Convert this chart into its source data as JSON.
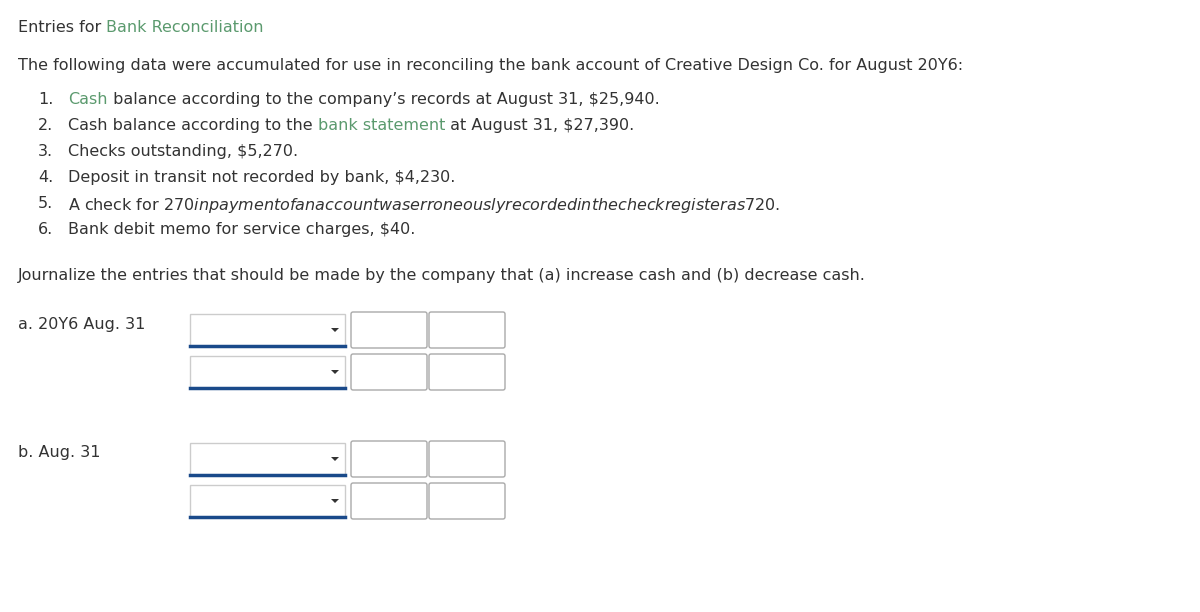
{
  "title_prefix": "Entries for ",
  "title_highlight": "Bank Reconciliation",
  "title_highlight_color": "#5b9a6e",
  "intro": "The following data were accumulated for use in reconciling the bank account of Creative Design Co. for August 20Y6:",
  "items": [
    {
      "num": "1.",
      "parts": [
        {
          "text": "Cash",
          "color": "#5b9a6e"
        },
        {
          "text": " balance according to the company’s records at August 31, $25,940.",
          "color": "#333333"
        }
      ]
    },
    {
      "num": "2.",
      "parts": [
        {
          "text": "Cash balance according to the ",
          "color": "#333333"
        },
        {
          "text": "bank statement",
          "color": "#5b9a6e"
        },
        {
          "text": " at August 31, $27,390.",
          "color": "#333333"
        }
      ]
    },
    {
      "num": "3.",
      "parts": [
        {
          "text": "Checks outstanding, $5,270.",
          "color": "#333333"
        }
      ]
    },
    {
      "num": "4.",
      "parts": [
        {
          "text": "Deposit in transit not recorded by bank, $4,230.",
          "color": "#333333"
        }
      ]
    },
    {
      "num": "5.",
      "parts": [
        {
          "text": "A check for $270 in payment of an account was erroneously recorded in the check register as $720.",
          "color": "#333333"
        }
      ]
    },
    {
      "num": "6.",
      "parts": [
        {
          "text": "Bank debit memo for service charges, $40.",
          "color": "#333333"
        }
      ]
    }
  ],
  "question": "Journalize the entries that should be made by the company that (a) increase cash and (b) decrease cash.",
  "label_a": "a. 20Y6 Aug. 31",
  "label_b": "b. Aug. 31",
  "bg_color": "#ffffff",
  "text_color": "#333333",
  "dropdown_line_color": "#1a4a8a",
  "box_border_color": "#aaaaaa",
  "font_size": 11.5,
  "font_family": "DejaVu Sans"
}
